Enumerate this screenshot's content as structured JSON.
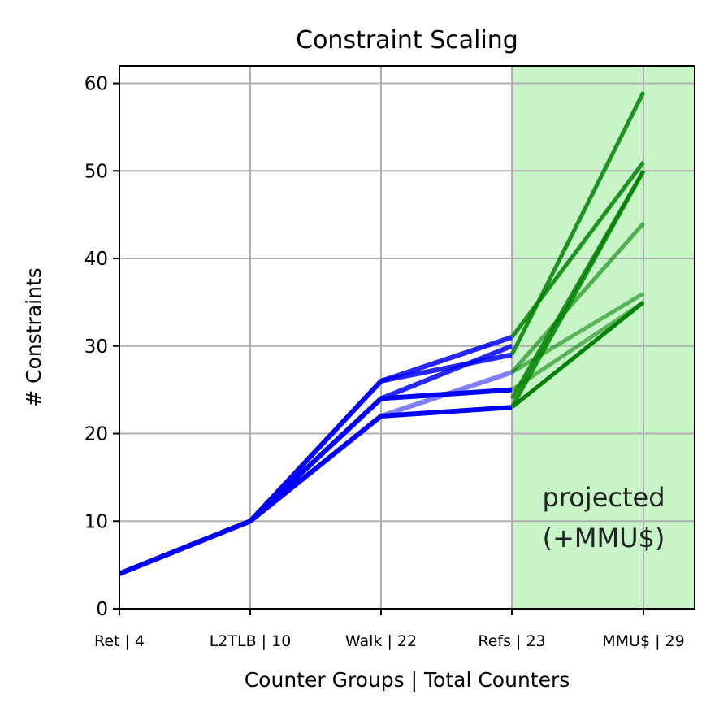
{
  "chart_data": {
    "type": "line",
    "title": "Constraint Scaling",
    "xlabel": "Counter Groups | Total Counters",
    "ylabel": "# Constraints",
    "categories": [
      "Ret | 4",
      "L2TLB | 10",
      "Walk | 22",
      "Refs | 23",
      "MMU$ | 29"
    ],
    "ylim": [
      0,
      62
    ],
    "yticks": [
      0,
      10,
      20,
      30,
      40,
      50,
      60
    ],
    "grid": true,
    "shaded_region": {
      "from_category": 3,
      "to_category": 4,
      "color": "#c8f5c8"
    },
    "annotation": {
      "lines": [
        "projected",
        "(+MMU$)"
      ],
      "position": "lower-right"
    },
    "colors": {
      "measured": "#0000ff",
      "projected": "#008000"
    },
    "measured_series": [
      {
        "values": [
          4,
          10,
          26,
          31
        ],
        "opacity": 0.85
      },
      {
        "values": [
          4,
          10,
          26,
          29
        ],
        "opacity": 0.85
      },
      {
        "values": [
          4,
          10,
          24,
          30
        ],
        "opacity": 0.85
      },
      {
        "values": [
          4,
          10,
          24,
          25
        ],
        "opacity": 1.0
      },
      {
        "values": [
          4,
          10,
          22,
          23
        ],
        "opacity": 1.0
      },
      {
        "values": [
          4,
          10,
          22,
          27
        ],
        "opacity": 0.5
      }
    ],
    "projected_series": [
      {
        "values": [
          29,
          59
        ],
        "opacity": 0.85
      },
      {
        "values": [
          31,
          51
        ],
        "opacity": 0.85
      },
      {
        "values": [
          24,
          50
        ],
        "opacity": 0.85
      },
      {
        "values": [
          23,
          50
        ],
        "opacity": 0.85
      },
      {
        "values": [
          27,
          44
        ],
        "opacity": 0.6
      },
      {
        "values": [
          27,
          36
        ],
        "opacity": 0.55
      },
      {
        "values": [
          25,
          35
        ],
        "opacity": 0.55
      },
      {
        "values": [
          23,
          35
        ],
        "opacity": 1.0
      }
    ]
  }
}
